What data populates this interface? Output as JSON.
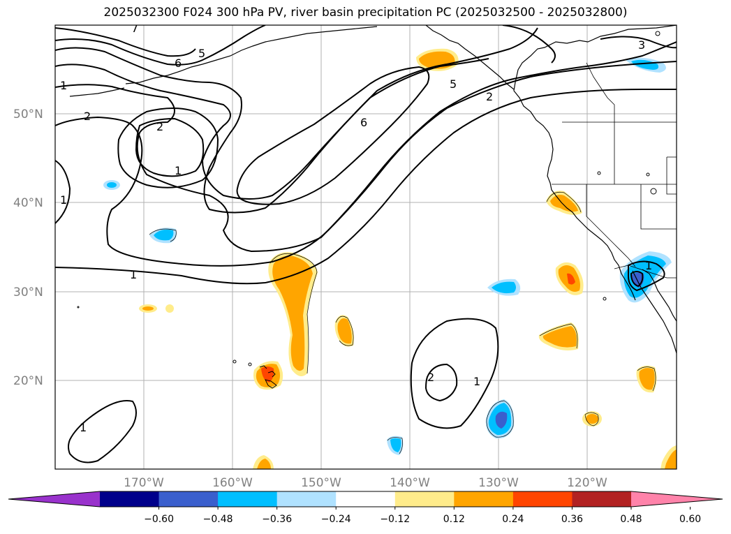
{
  "title": "2025032300 F024 300 hPa PV, river basin precipitation PC (2025032500 - 2025032800)",
  "lat_labels": [
    "50°N",
    "40°N",
    "30°N",
    "20°N"
  ],
  "lon_labels": [
    "170°W",
    "160°W",
    "150°W",
    "140°W",
    "130°W",
    "120°W"
  ],
  "pv_contour_labels": [
    "1",
    "2",
    "3",
    "5",
    "6",
    "7"
  ],
  "colorbar": {
    "ticks": [
      "−0.60",
      "−0.48",
      "−0.36",
      "−0.24",
      "−0.12",
      "0.12",
      "0.24",
      "0.36",
      "0.48",
      "0.60"
    ],
    "colors": [
      "#9932cc",
      "#00008b",
      "#3a5fcd",
      "#00bfff",
      "#b0e2ff",
      "#ffffff",
      "#ffec8b",
      "#ffa500",
      "#ff4500",
      "#b22222",
      "#ff83aa"
    ]
  },
  "map_extent": {
    "lon_min": -180,
    "lon_max": -110,
    "lat_min": 10,
    "lat_max": 60
  },
  "colors": {
    "gridline": "#b0b0b0",
    "contour": "#000000",
    "axis_label": "#808080"
  }
}
